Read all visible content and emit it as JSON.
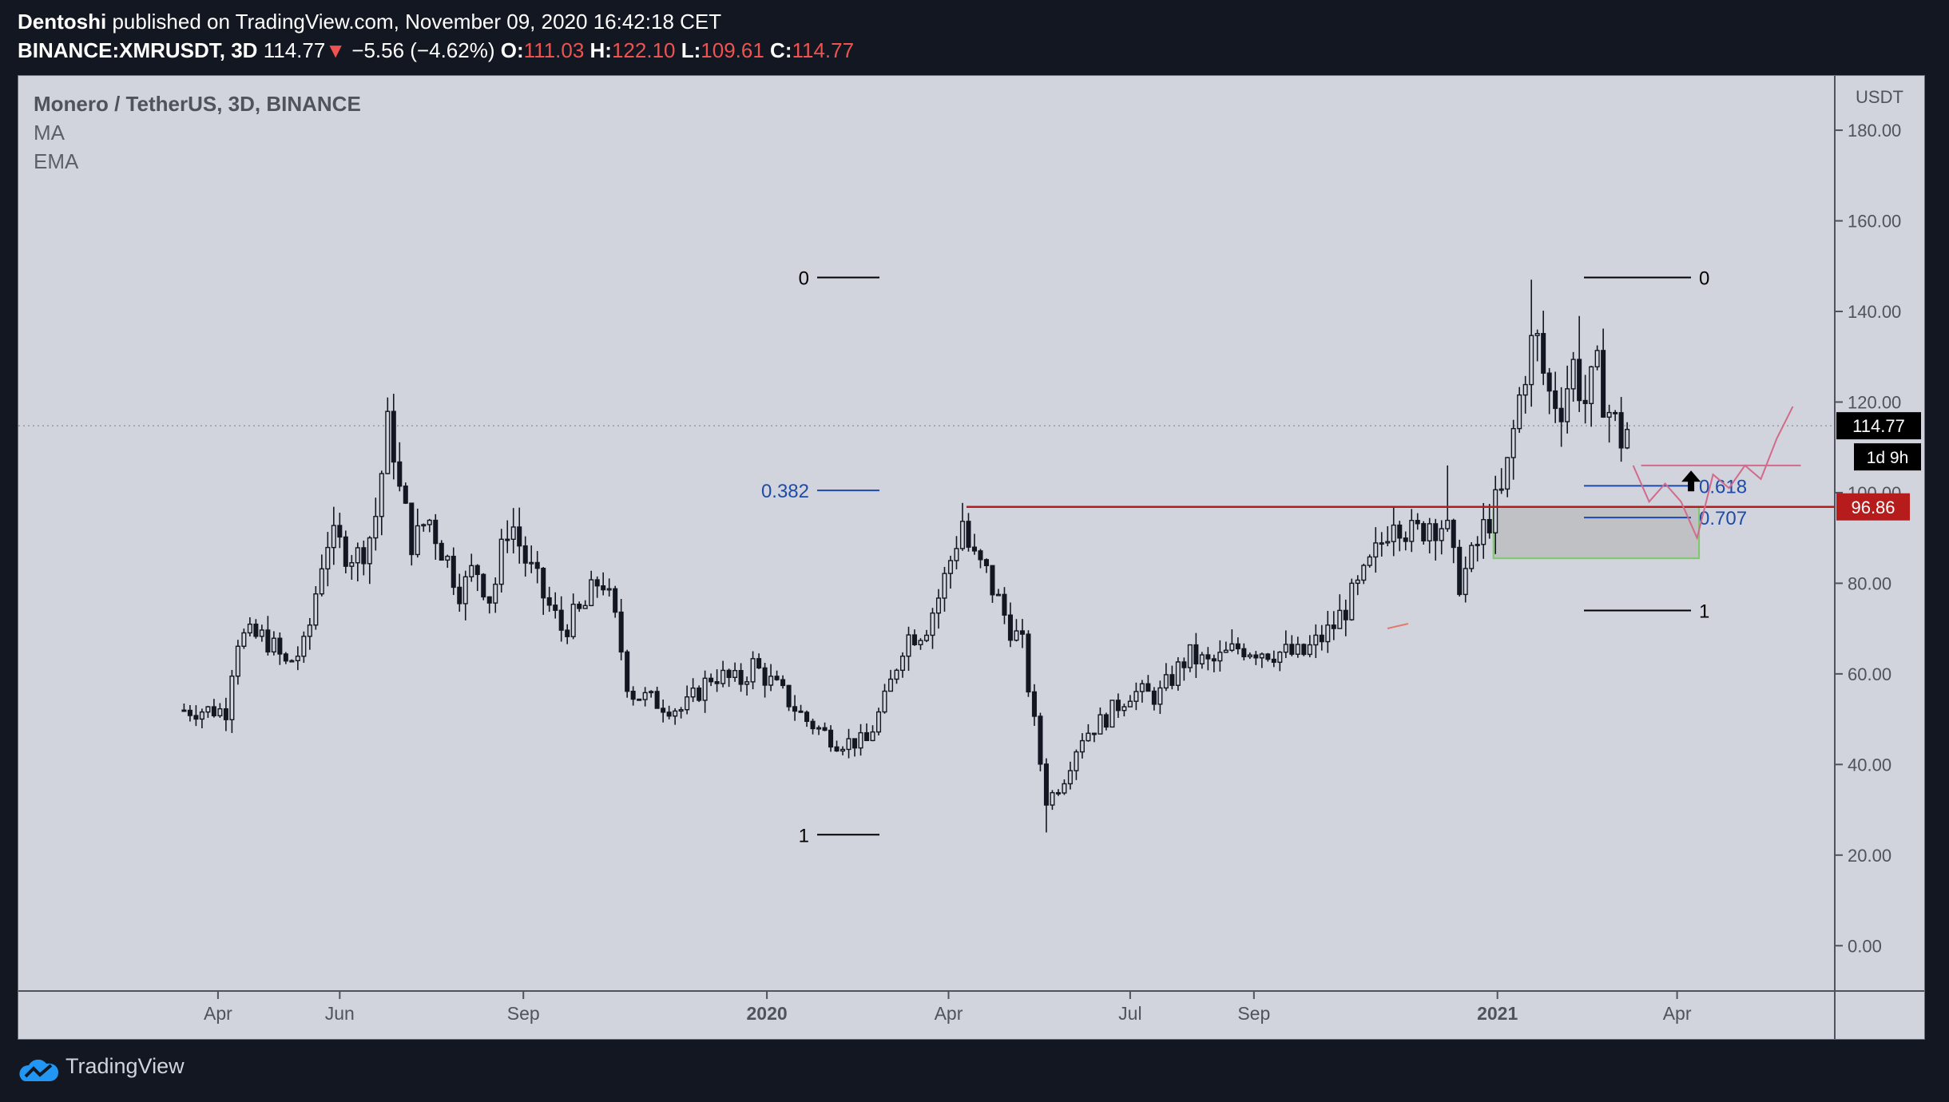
{
  "header": {
    "author": "Dentoshi",
    "published": "published on TradingView.com, November 09, 2020 16:42:18 CET",
    "symbol": "BINANCE:XMRUSDT, 3D",
    "last": "114.77",
    "change_arrow": "▼",
    "change": "−5.56 (−4.62%)",
    "o_label": "O:",
    "o": "111.03",
    "h_label": "H:",
    "h": "122.10",
    "l_label": "L:",
    "l": "109.61",
    "c_label": "C:",
    "c": "114.77"
  },
  "legend": {
    "title": "Monero / TetherUS, 3D, BINANCE",
    "ind1": "MA",
    "ind2": "EMA"
  },
  "footer": {
    "brand": "TradingView",
    "logo_icon": "tradingview-logo-icon"
  },
  "colors": {
    "background": "#131722",
    "chart_bg": "#d1d4dc",
    "candle": "#131722",
    "resistance": "#b71c1c",
    "fib_blue": "#1e4ba8",
    "zone_border": "#7cc86a",
    "path": "#d26a8c"
  },
  "chart_data": {
    "type": "candlestick",
    "currency_label": "USDT",
    "y_ticks": [
      "180.00",
      "160.00",
      "140.00",
      "120.00",
      "100.00",
      "80.00",
      "60.00",
      "40.00",
      "20.00",
      "0.00"
    ],
    "ylim": [
      -10,
      192
    ],
    "x_ticks": [
      {
        "label": "Apr",
        "date": "2019-04-01",
        "bold": false
      },
      {
        "label": "Jun",
        "date": "2019-06-01",
        "bold": false
      },
      {
        "label": "Sep",
        "date": "2019-09-01",
        "bold": false
      },
      {
        "label": "2020",
        "date": "2020-01-01",
        "bold": true
      },
      {
        "label": "Apr",
        "date": "2020-04-01",
        "bold": false
      },
      {
        "label": "Jul",
        "date": "2020-07-01",
        "bold": false
      },
      {
        "label": "Sep",
        "date": "2020-09-01",
        "bold": false
      },
      {
        "label": "2021",
        "date": "2021-01-01",
        "bold": true
      },
      {
        "label": "Apr",
        "date": "2021-04-01",
        "bold": false
      }
    ],
    "xlim": [
      "2018-12-22",
      "2021-06-19"
    ],
    "close_path": [
      [
        "2019-03-15",
        52
      ],
      [
        "2019-04-05",
        52
      ],
      [
        "2019-04-10",
        68
      ],
      [
        "2019-04-25",
        68
      ],
      [
        "2019-05-05",
        62
      ],
      [
        "2019-05-15",
        66
      ],
      [
        "2019-05-25",
        90
      ],
      [
        "2019-06-02",
        88
      ],
      [
        "2019-06-10",
        86
      ],
      [
        "2019-06-18",
        92
      ],
      [
        "2019-06-26",
        117
      ],
      [
        "2019-07-01",
        100
      ],
      [
        "2019-07-08",
        88
      ],
      [
        "2019-07-15",
        95
      ],
      [
        "2019-07-22",
        88
      ],
      [
        "2019-08-01",
        78
      ],
      [
        "2019-08-08",
        84
      ],
      [
        "2019-08-16",
        76
      ],
      [
        "2019-08-25",
        95
      ],
      [
        "2019-09-01",
        86
      ],
      [
        "2019-09-10",
        78
      ],
      [
        "2019-09-20",
        70
      ],
      [
        "2019-10-01",
        74
      ],
      [
        "2019-10-10",
        82
      ],
      [
        "2019-10-18",
        70
      ],
      [
        "2019-10-24",
        56
      ],
      [
        "2019-11-05",
        54
      ],
      [
        "2019-11-20",
        52
      ],
      [
        "2019-12-05",
        60
      ],
      [
        "2019-12-18",
        58
      ],
      [
        "2019-12-25",
        62
      ],
      [
        "2020-01-08",
        56
      ],
      [
        "2020-01-20",
        50
      ],
      [
        "2020-02-05",
        45
      ],
      [
        "2020-02-20",
        45
      ],
      [
        "2020-03-01",
        55
      ],
      [
        "2020-03-10",
        68
      ],
      [
        "2020-03-20",
        70
      ],
      [
        "2020-03-28",
        78
      ],
      [
        "2020-04-08",
        94
      ],
      [
        "2020-04-12",
        86
      ],
      [
        "2020-04-20",
        82
      ],
      [
        "2020-04-30",
        72
      ],
      [
        "2020-05-08",
        66
      ],
      [
        "2020-05-15",
        46
      ],
      [
        "2020-05-20",
        32
      ],
      [
        "2020-05-28",
        36
      ],
      [
        "2020-06-06",
        46
      ],
      [
        "2020-06-18",
        50
      ],
      [
        "2020-07-01",
        56
      ],
      [
        "2020-07-15",
        55
      ],
      [
        "2020-07-30",
        64
      ],
      [
        "2020-08-10",
        62
      ],
      [
        "2020-08-25",
        66
      ],
      [
        "2020-09-10",
        65
      ],
      [
        "2020-09-25",
        64
      ],
      [
        "2020-10-10",
        70
      ],
      [
        "2020-10-25",
        80
      ],
      [
        "2020-11-03",
        88
      ],
      [
        "2020-11-10",
        96
      ],
      [
        "2020-11-20",
        90
      ],
      [
        "2020-11-28",
        94
      ],
      [
        "2020-12-06",
        93
      ],
      [
        "2020-12-12",
        80
      ],
      [
        "2020-12-18",
        84
      ],
      [
        "2020-12-26",
        93
      ],
      [
        "2021-01-04",
        100
      ],
      [
        "2021-01-10",
        116
      ],
      [
        "2021-01-15",
        128
      ],
      [
        "2021-01-20",
        135
      ],
      [
        "2021-01-26",
        122
      ],
      [
        "2021-02-02",
        120
      ],
      [
        "2021-02-08",
        128
      ],
      [
        "2021-02-14",
        120
      ],
      [
        "2021-02-20",
        126
      ],
      [
        "2021-02-26",
        118
      ],
      [
        "2021-03-04",
        112
      ],
      [
        "2021-03-08",
        114.77
      ]
    ],
    "spikes": [
      {
        "date": "2019-06-26",
        "high": 121
      },
      {
        "date": "2020-04-08",
        "high": 96
      },
      {
        "date": "2020-05-20",
        "low": 25
      },
      {
        "date": "2020-12-06",
        "high": 106
      },
      {
        "date": "2021-01-19",
        "high": 147
      },
      {
        "date": "2021-02-10",
        "high": 139
      }
    ],
    "last_price": {
      "value": 114.77,
      "label": "114.77",
      "countdown": "1d 9h"
    },
    "resistance": {
      "value": 96.86,
      "label": "96.86",
      "start": "2020-04-10"
    },
    "zone": {
      "start": "2020-12-30",
      "end": "2021-04-12",
      "top": 96.86,
      "bottom": 85.5
    },
    "fib_left": [
      {
        "label": "0",
        "value": 147.5,
        "color": "black"
      },
      {
        "label": "0.382",
        "value": 100.5,
        "color": "blue"
      },
      {
        "label": "1",
        "value": 24.5,
        "color": "black"
      }
    ],
    "fib_right": [
      {
        "label": "0",
        "value": 147.5,
        "color": "black"
      },
      {
        "label": "0.618",
        "value": 101.5,
        "color": "blue"
      },
      {
        "label": "0.707",
        "value": 94.5,
        "color": "blue"
      },
      {
        "label": "1",
        "value": 74,
        "color": "black"
      }
    ],
    "projection_path": [
      [
        "2021-03-10",
        106
      ],
      [
        "2021-03-18",
        98
      ],
      [
        "2021-03-26",
        102
      ],
      [
        "2021-04-03",
        98
      ],
      [
        "2021-04-11",
        90
      ],
      [
        "2021-04-19",
        104
      ],
      [
        "2021-04-27",
        101
      ],
      [
        "2021-05-05",
        106
      ],
      [
        "2021-05-13",
        103
      ],
      [
        "2021-05-21",
        112
      ],
      [
        "2021-05-29",
        119
      ]
    ],
    "target_line": {
      "value": 106,
      "start": "2021-03-14",
      "end": "2021-06-02"
    },
    "arrow": {
      "date": "2021-04-08",
      "value": 101
    }
  }
}
